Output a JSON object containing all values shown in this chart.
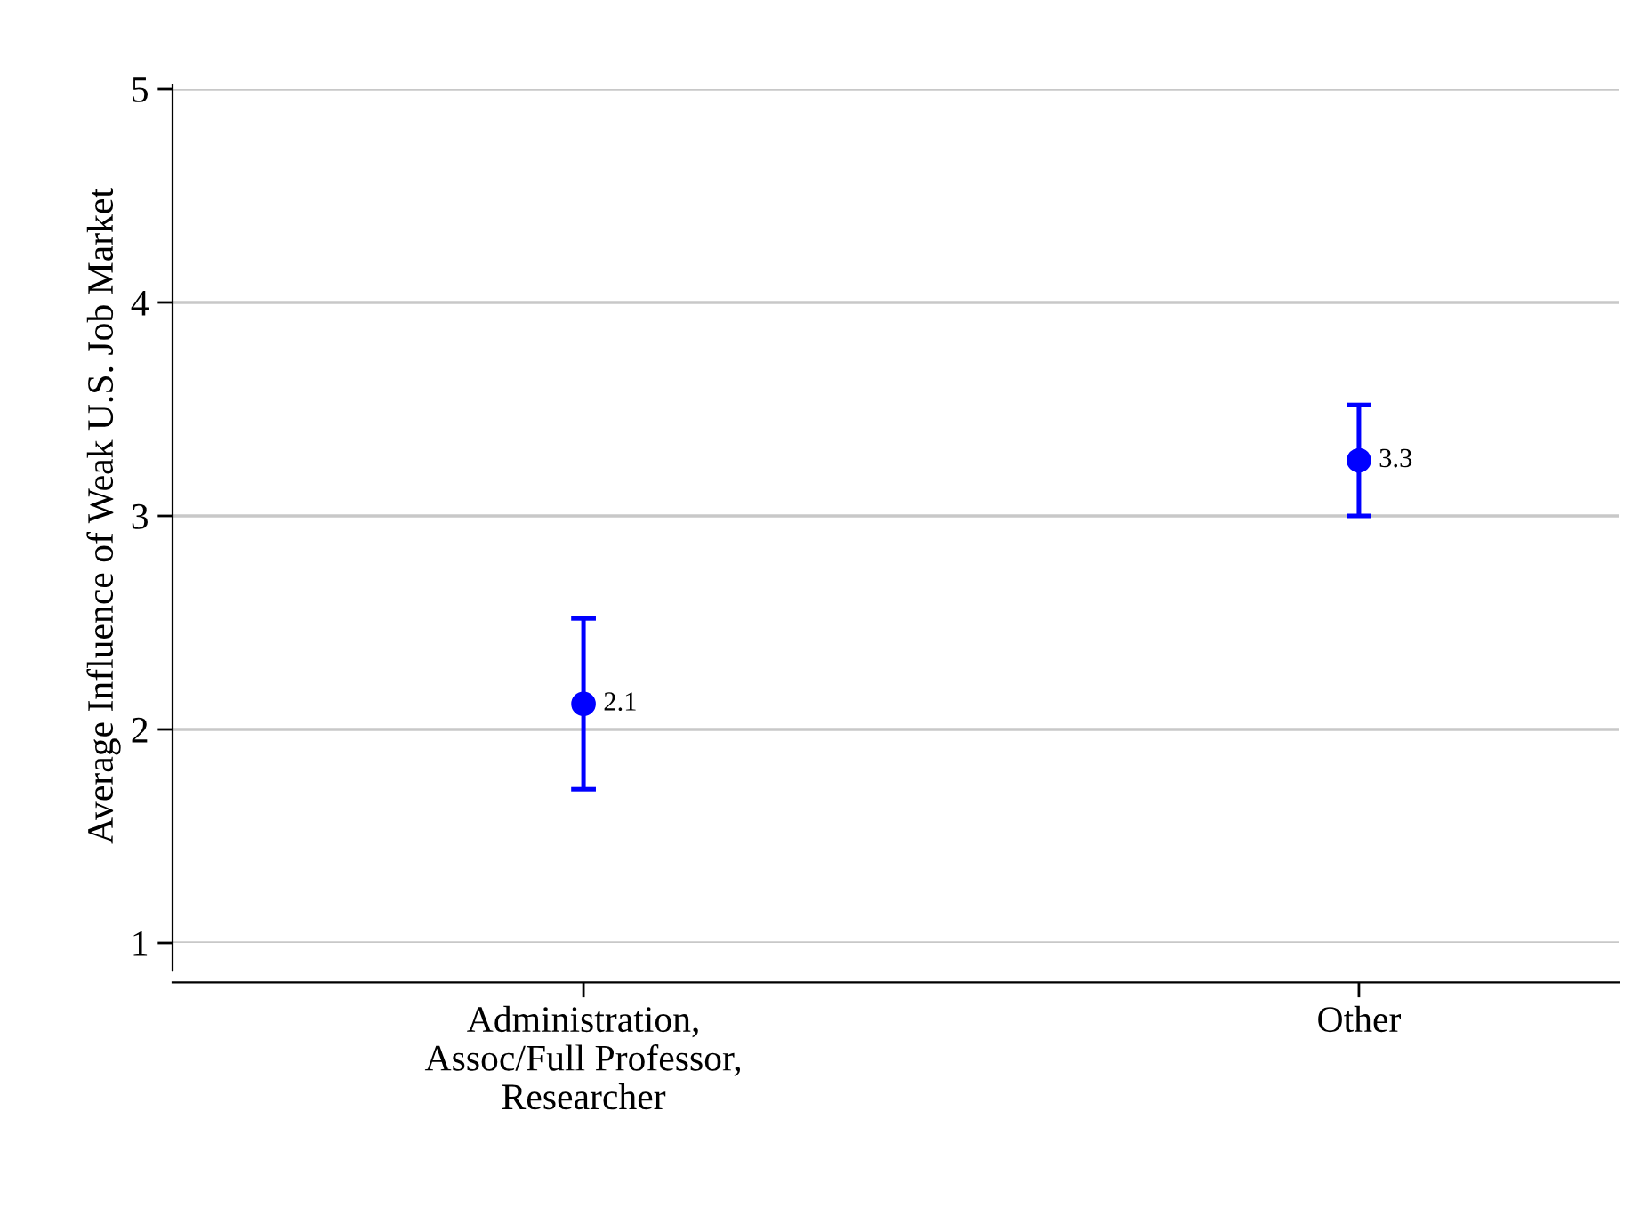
{
  "chart_data": {
    "type": "scatter",
    "ylabel": "Average Influence of Weak U.S. Job Market",
    "categories": [
      "Administration,\nAssoc/Full Professor,\nResearcher",
      "Other"
    ],
    "series": [
      {
        "color": "#0000ff",
        "values": [
          2.12,
          3.26
        ],
        "errors": [
          [
            1.72,
            2.52
          ],
          [
            3.0,
            3.52
          ]
        ],
        "value_labels": [
          "2.1",
          "3.3"
        ]
      }
    ],
    "ylim": [
      1,
      5
    ],
    "yticks": [
      1,
      2,
      3,
      4,
      5
    ],
    "grid": "y",
    "marker": "circle"
  }
}
